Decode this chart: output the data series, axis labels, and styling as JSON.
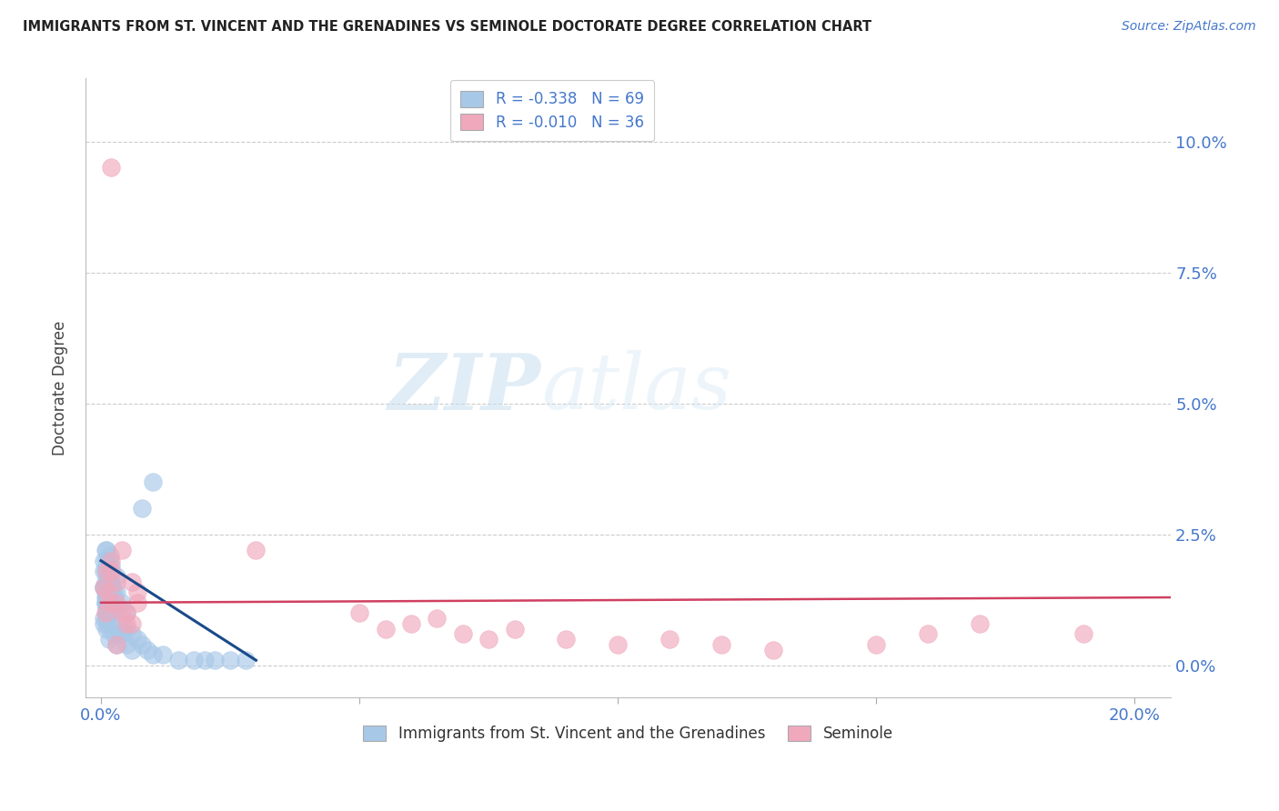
{
  "title": "IMMIGRANTS FROM ST. VINCENT AND THE GRENADINES VS SEMINOLE DOCTORATE DEGREE CORRELATION CHART",
  "source": "Source: ZipAtlas.com",
  "ylabel": "Doctorate Degree",
  "xlim": [
    -0.003,
    0.207
  ],
  "ylim": [
    -0.006,
    0.112
  ],
  "xtick_vals": [
    0.0,
    0.05,
    0.1,
    0.15,
    0.2
  ],
  "xtick_labels": [
    "0.0%",
    "",
    "",
    "",
    "20.0%"
  ],
  "ytick_vals": [
    0.0,
    0.025,
    0.05,
    0.075,
    0.1
  ],
  "ytick_labels": [
    "0.0%",
    "2.5%",
    "5.0%",
    "7.5%",
    "10.0%"
  ],
  "blue_R": "-0.338",
  "blue_N": "69",
  "pink_R": "-0.010",
  "pink_N": "36",
  "blue_color": "#a8c8e8",
  "pink_color": "#f0a8bc",
  "blue_line_color": "#1a4a8a",
  "pink_line_color": "#d04060",
  "legend_blue_label": "Immigrants from St. Vincent and the Grenadines",
  "legend_pink_label": "Seminole",
  "watermark_zip": "ZIP",
  "watermark_atlas": "atlas",
  "blue_x": [
    0.0005,
    0.0008,
    0.001,
    0.0005,
    0.0008,
    0.001,
    0.0015,
    0.002,
    0.0015,
    0.001,
    0.0005,
    0.0008,
    0.001,
    0.0012,
    0.0018,
    0.002,
    0.0025,
    0.003,
    0.0005,
    0.001,
    0.0015,
    0.002,
    0.0008,
    0.001,
    0.0012,
    0.0015,
    0.002,
    0.0008,
    0.001,
    0.0015,
    0.0005,
    0.0008,
    0.001,
    0.002,
    0.0025,
    0.003,
    0.0005,
    0.001,
    0.0015,
    0.002,
    0.0025,
    0.003,
    0.004,
    0.005,
    0.006,
    0.0008,
    0.001,
    0.0015,
    0.002,
    0.003,
    0.004,
    0.005,
    0.0035,
    0.004,
    0.005,
    0.006,
    0.007,
    0.008,
    0.009,
    0.01,
    0.012,
    0.015,
    0.018,
    0.02,
    0.022,
    0.025,
    0.028,
    0.01,
    0.008
  ],
  "blue_y": [
    0.02,
    0.018,
    0.022,
    0.015,
    0.013,
    0.011,
    0.016,
    0.019,
    0.014,
    0.01,
    0.008,
    0.012,
    0.009,
    0.017,
    0.021,
    0.018,
    0.014,
    0.017,
    0.015,
    0.013,
    0.011,
    0.016,
    0.012,
    0.01,
    0.008,
    0.015,
    0.012,
    0.014,
    0.012,
    0.01,
    0.018,
    0.016,
    0.014,
    0.015,
    0.013,
    0.011,
    0.009,
    0.007,
    0.005,
    0.008,
    0.006,
    0.004,
    0.006,
    0.004,
    0.003,
    0.022,
    0.02,
    0.018,
    0.016,
    0.014,
    0.012,
    0.01,
    0.008,
    0.006,
    0.007,
    0.006,
    0.005,
    0.004,
    0.003,
    0.002,
    0.002,
    0.001,
    0.001,
    0.001,
    0.001,
    0.001,
    0.001,
    0.035,
    0.03
  ],
  "pink_x": [
    0.0005,
    0.001,
    0.0015,
    0.002,
    0.003,
    0.004,
    0.0008,
    0.0012,
    0.002,
    0.003,
    0.004,
    0.005,
    0.006,
    0.007,
    0.03,
    0.005,
    0.006,
    0.007,
    0.05,
    0.055,
    0.06,
    0.065,
    0.07,
    0.075,
    0.08,
    0.09,
    0.1,
    0.11,
    0.12,
    0.13,
    0.15,
    0.16,
    0.17,
    0.19,
    0.002,
    0.003
  ],
  "pink_y": [
    0.015,
    0.018,
    0.012,
    0.02,
    0.016,
    0.022,
    0.01,
    0.014,
    0.018,
    0.012,
    0.01,
    0.008,
    0.016,
    0.014,
    0.022,
    0.01,
    0.008,
    0.012,
    0.01,
    0.007,
    0.008,
    0.009,
    0.006,
    0.005,
    0.007,
    0.005,
    0.004,
    0.005,
    0.004,
    0.003,
    0.004,
    0.006,
    0.008,
    0.006,
    0.095,
    0.004
  ],
  "blue_line_x0": 0.0,
  "blue_line_y0": 0.02,
  "blue_line_x1": 0.03,
  "blue_line_y1": 0.001,
  "pink_line_x0": 0.0,
  "pink_line_y0": 0.012,
  "pink_line_x1": 0.207,
  "pink_line_y1": 0.013
}
